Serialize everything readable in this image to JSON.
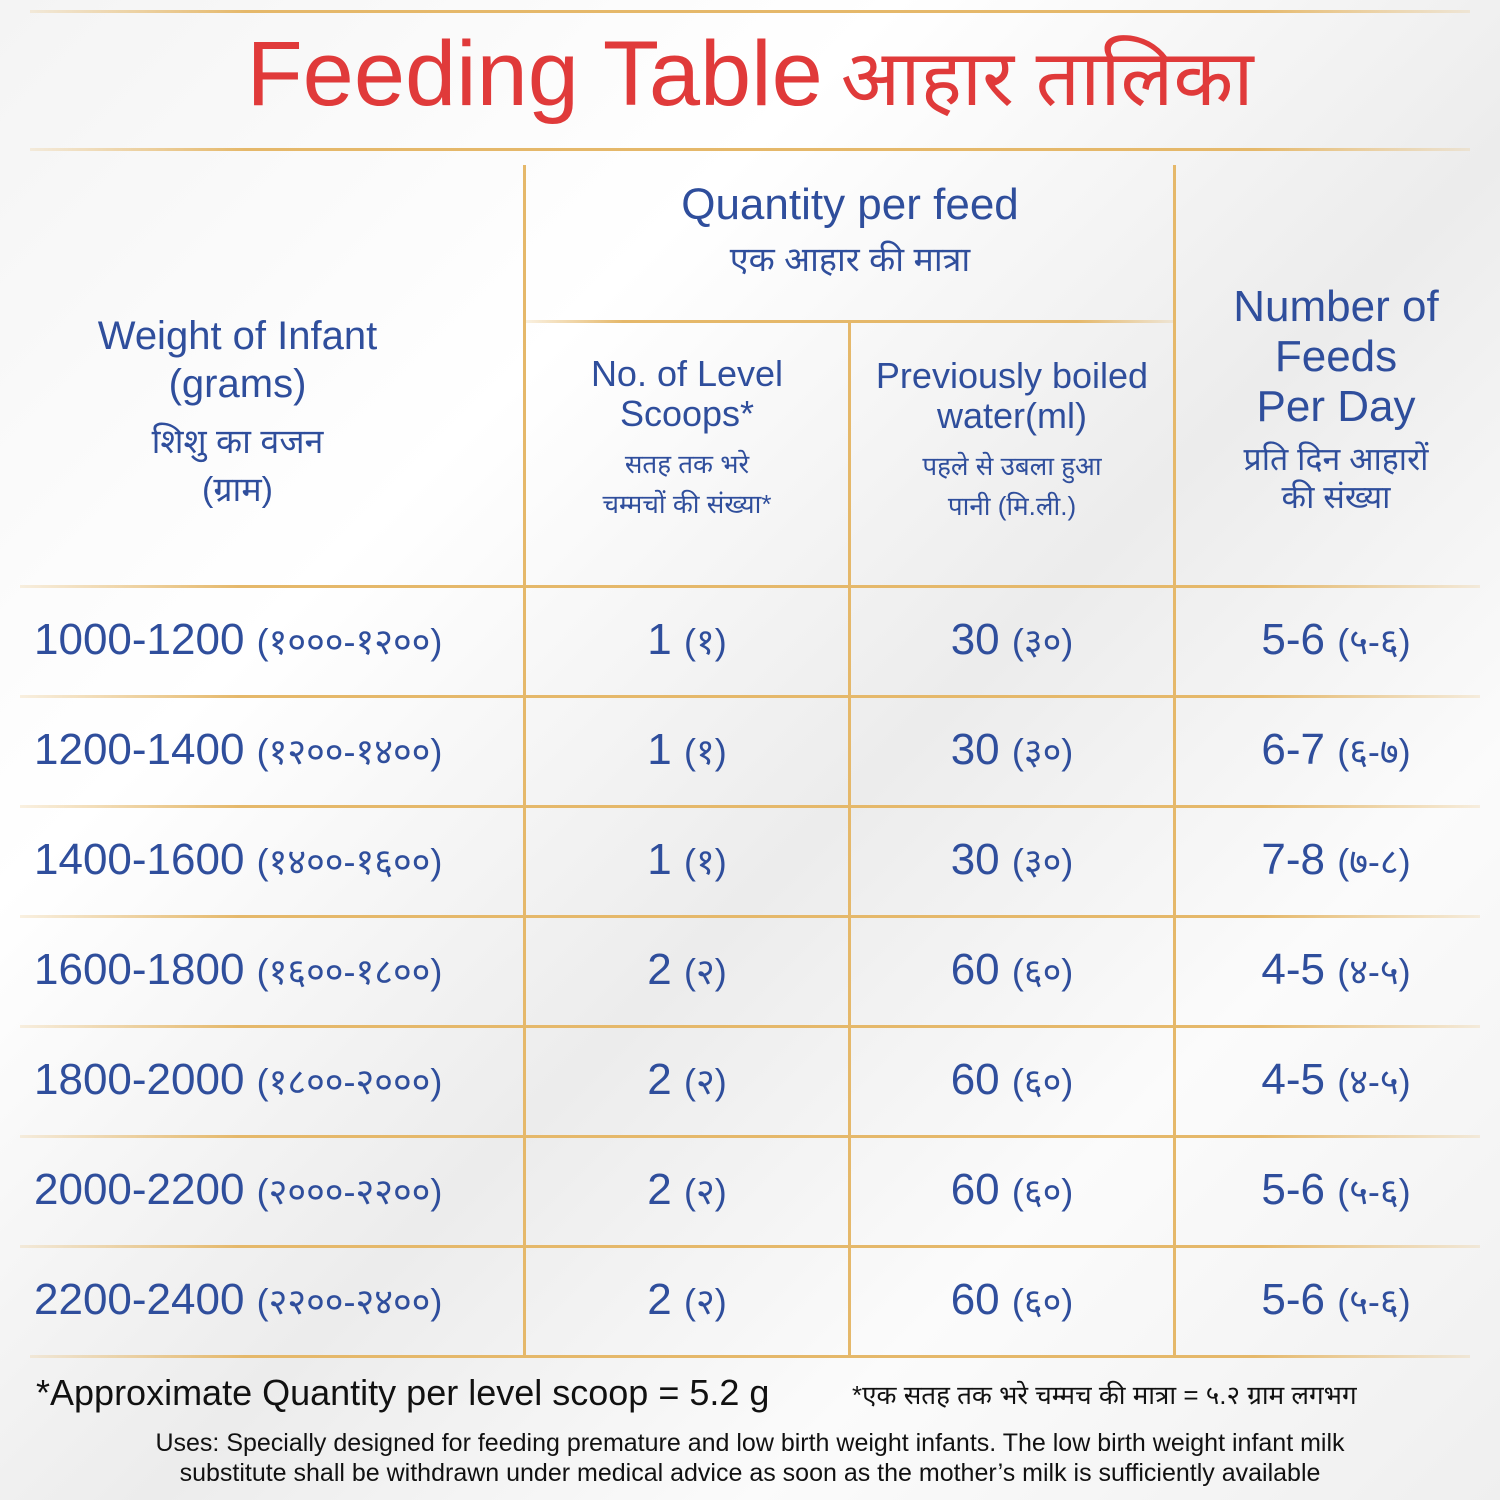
{
  "title": {
    "en": "Feeding Table",
    "hi": "आहार तालिका"
  },
  "header": {
    "weight": {
      "en1": "Weight of Infant",
      "en2": "(grams)",
      "hi1": "शिशु का वजन",
      "hi2": "(ग्राम)"
    },
    "quantity": {
      "en": "Quantity per feed",
      "hi": "एक आहार की मात्रा"
    },
    "scoops": {
      "en1": "No. of Level",
      "en2": "Scoops*",
      "hi1": "सतह तक भरे",
      "hi2": "चम्मचों की संख्या*"
    },
    "water": {
      "en1": "Previously boiled",
      "en2": "water(ml)",
      "hi1": "पहले से उबला हुआ",
      "hi2": "पानी (मि.ली.)"
    },
    "feeds": {
      "en1": "Number of",
      "en2": "Feeds",
      "en3": "Per Day",
      "hi1": "प्रति दिन आहारों",
      "hi2": "की संख्या"
    }
  },
  "rows": [
    {
      "weight": "1000-1200",
      "weight_hi": "(१०००-१२००)",
      "scoops": "1",
      "scoops_hi": "(१)",
      "water": "30",
      "water_hi": "(३०)",
      "feeds": "5-6",
      "feeds_hi": "(५-६)"
    },
    {
      "weight": "1200-1400",
      "weight_hi": "(१२००-१४००)",
      "scoops": "1",
      "scoops_hi": "(१)",
      "water": "30",
      "water_hi": "(३०)",
      "feeds": "6-7",
      "feeds_hi": "(६-७)"
    },
    {
      "weight": "1400-1600",
      "weight_hi": "(१४००-१६००)",
      "scoops": "1",
      "scoops_hi": "(१)",
      "water": "30",
      "water_hi": "(३०)",
      "feeds": "7-8",
      "feeds_hi": "(७-८)"
    },
    {
      "weight": "1600-1800",
      "weight_hi": "(१६००-१८००)",
      "scoops": "2",
      "scoops_hi": "(२)",
      "water": "60",
      "water_hi": "(६०)",
      "feeds": "4-5",
      "feeds_hi": "(४-५)"
    },
    {
      "weight": "1800-2000",
      "weight_hi": "(१८००-२०००)",
      "scoops": "2",
      "scoops_hi": "(२)",
      "water": "60",
      "water_hi": "(६०)",
      "feeds": "4-5",
      "feeds_hi": "(४-५)"
    },
    {
      "weight": "2000-2200",
      "weight_hi": "(२०००-२२००)",
      "scoops": "2",
      "scoops_hi": "(२)",
      "water": "60",
      "water_hi": "(६०)",
      "feeds": "5-6",
      "feeds_hi": "(५-६)"
    },
    {
      "weight": "2200-2400",
      "weight_hi": "(२२००-२४००)",
      "scoops": "2",
      "scoops_hi": "(२)",
      "water": "60",
      "water_hi": "(६०)",
      "feeds": "5-6",
      "feeds_hi": "(५-६)"
    }
  ],
  "footer": {
    "note_en": "*Approximate Quantity per level scoop = 5.2 g",
    "note_hi": "*एक सतह तक भरे चम्मच की मात्रा = ५.२ ग्राम लगभग",
    "uses1": "Uses: Specially designed for feeding premature and low birth weight infants. The low birth weight infant milk",
    "uses2": "substitute shall be withdrawn under medical advice as soon as the mother’s milk is sufficiently available"
  },
  "colors": {
    "title": "#e03a3a",
    "text": "#2f4e9c",
    "rule": "#e5b86a"
  }
}
